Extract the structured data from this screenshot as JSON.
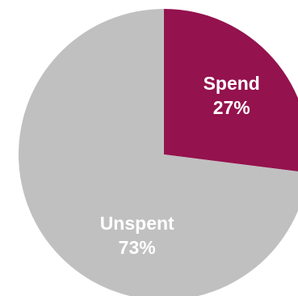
{
  "chart_data": {
    "type": "pie",
    "start_angle_deg": 0,
    "direction": "clockwise",
    "slices": [
      {
        "label": "Spend",
        "value": 27,
        "value_label": "27%",
        "color": "#94124e"
      },
      {
        "label": "Unspent",
        "value": 73,
        "value_label": "73%",
        "color": "#c0c0c0"
      }
    ]
  }
}
